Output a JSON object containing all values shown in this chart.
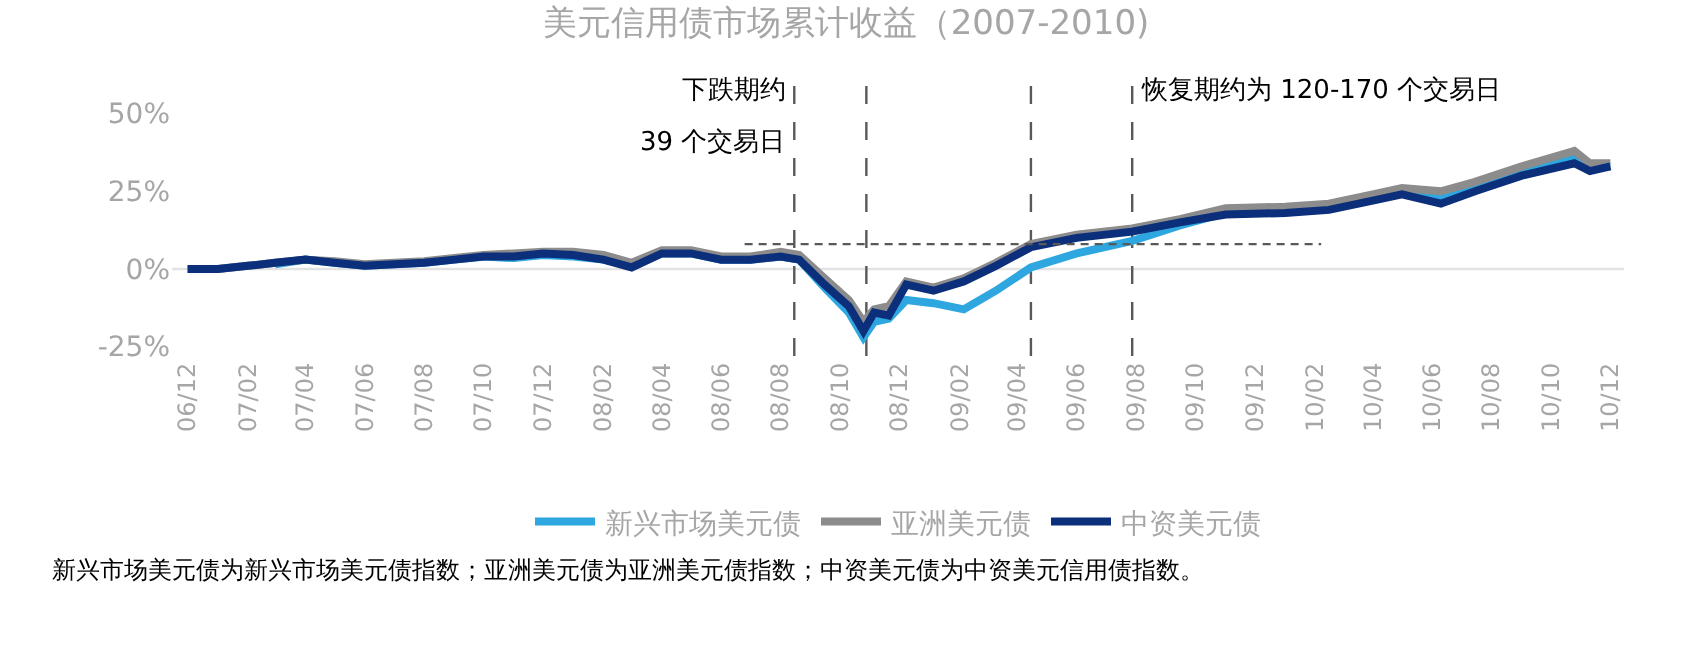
{
  "chart_data": {
    "type": "line",
    "title": "美元信用债市场累计收益（2007-2010)",
    "x": [
      "2006-12-01",
      "2007-01-01",
      "2007-02-01",
      "2007-03-01",
      "2007-04-01",
      "2007-05-01",
      "2007-06-01",
      "2007-07-01",
      "2007-08-01",
      "2007-09-01",
      "2007-10-01",
      "2007-11-01",
      "2007-12-01",
      "2008-01-01",
      "2008-02-01",
      "2008-03-01",
      "2008-04-01",
      "2008-05-01",
      "2008-06-01",
      "2008-07-01",
      "2008-08-01",
      "2008-08-20",
      "2008-09-15",
      "2008-10-10",
      "2008-10-25",
      "2008-11-05",
      "2008-11-20",
      "2008-12-08",
      "2009-01-05",
      "2009-02-05",
      "2009-03-10",
      "2009-04-15",
      "2009-06-01",
      "2009-07-28",
      "2009-09-15",
      "2009-11-01",
      "2010-01-01",
      "2010-02-15",
      "2010-04-01",
      "2010-05-01",
      "2010-06-10",
      "2010-07-15",
      "2010-09-01",
      "2010-10-25",
      "2010-11-10",
      "2010-12-01"
    ],
    "series": [
      {
        "name": "新兴市场美元债",
        "color": "#2ea7e0",
        "values": [
          null,
          null,
          null,
          1.5,
          3,
          2,
          1,
          1.5,
          2,
          3,
          4,
          3.5,
          4.5,
          4,
          3,
          1,
          5,
          5,
          3,
          3,
          4,
          3,
          -6,
          -14,
          -22,
          -17,
          -16,
          -10,
          -11,
          -13,
          -7,
          0.5,
          5,
          9,
          14,
          18,
          19,
          20,
          23,
          25,
          23,
          27,
          31,
          36,
          33,
          33
        ]
      },
      {
        "name": "亚洲美元债",
        "color": "#8c8c8c",
        "values": [
          0,
          0,
          1,
          2,
          3,
          2.5,
          1.5,
          2,
          2.5,
          3.5,
          4.5,
          5,
          5.5,
          5.5,
          4.5,
          2,
          6,
          6,
          4,
          4,
          5.5,
          4.5,
          -3,
          -10,
          -17,
          -13,
          -12,
          -4,
          -6,
          -3,
          2,
          8,
          11,
          13,
          16,
          19.5,
          20,
          21,
          24,
          26,
          25,
          28,
          33,
          38,
          34,
          34
        ]
      },
      {
        "name": "中资美元债",
        "color": "#0b2f7a",
        "values": [
          0,
          0,
          1,
          2,
          3,
          2,
          1,
          1.5,
          2,
          3,
          4,
          4,
          5,
          4.5,
          3,
          0.5,
          5,
          5,
          3,
          3,
          4,
          3,
          -5,
          -12,
          -20,
          -14,
          -15,
          -5,
          -7,
          -4,
          1,
          7,
          10,
          12,
          15,
          17.5,
          18,
          19,
          22,
          24,
          21,
          25,
          30,
          34,
          31.5,
          33
        ]
      },
      {
        "type": "line",
        "color": "#595959",
        "line_style": "dashed",
        "x": [
          "2008-06-25",
          "2010-02-07"
        ],
        "values": [
          8,
          8
        ]
      }
    ],
    "xlim": [
      "2006-11-15",
      "2010-12-15"
    ],
    "xticks": [
      {
        "value": "2006-12-01",
        "label": "06/12"
      },
      {
        "value": "2007-02-01",
        "label": "07/02"
      },
      {
        "value": "2007-04-01",
        "label": "07/04"
      },
      {
        "value": "2007-06-01",
        "label": "07/06"
      },
      {
        "value": "2007-08-01",
        "label": "07/08"
      },
      {
        "value": "2007-10-01",
        "label": "07/10"
      },
      {
        "value": "2007-12-01",
        "label": "07/12"
      },
      {
        "value": "2008-02-01",
        "label": "08/02"
      },
      {
        "value": "2008-04-01",
        "label": "08/04"
      },
      {
        "value": "2008-06-01",
        "label": "08/06"
      },
      {
        "value": "2008-08-01",
        "label": "08/08"
      },
      {
        "value": "2008-10-01",
        "label": "08/10"
      },
      {
        "value": "2008-12-01",
        "label": "08/12"
      },
      {
        "value": "2009-02-01",
        "label": "09/02"
      },
      {
        "value": "2009-04-01",
        "label": "09/04"
      },
      {
        "value": "2009-06-01",
        "label": "09/06"
      },
      {
        "value": "2009-08-01",
        "label": "09/08"
      },
      {
        "value": "2009-10-01",
        "label": "09/10"
      },
      {
        "value": "2009-12-01",
        "label": "09/12"
      },
      {
        "value": "2010-02-01",
        "label": "10/02"
      },
      {
        "value": "2010-04-01",
        "label": "10/04"
      },
      {
        "value": "2010-06-01",
        "label": "10/06"
      },
      {
        "value": "2010-08-01",
        "label": "10/08"
      },
      {
        "value": "2010-10-01",
        "label": "10/10"
      },
      {
        "value": "2010-12-01",
        "label": "10/12"
      }
    ],
    "ylim": [
      -28,
      64
    ],
    "yticks": [
      {
        "value": -25,
        "label": "-25%"
      },
      {
        "value": 0,
        "label": "0%"
      },
      {
        "value": 25,
        "label": "25%"
      },
      {
        "value": 50,
        "label": "50%"
      }
    ],
    "ref_lines": [
      {
        "axis": "y",
        "value": 0,
        "color": "#e3e3e3",
        "line_style": "solid"
      },
      {
        "axis": "x",
        "value": "2008-08-15",
        "color": "#595959",
        "line_style": "dashed"
      },
      {
        "axis": "x",
        "value": "2008-10-28",
        "color": "#595959",
        "line_style": "dashed"
      },
      {
        "axis": "x",
        "value": "2009-04-15",
        "color": "#595959",
        "line_style": "dashed"
      },
      {
        "axis": "x",
        "value": "2009-07-28",
        "color": "#595959",
        "line_style": "dashed"
      }
    ],
    "annotations": [
      "下跌期约",
      "39 个交易日",
      "恢复期约为 120-170 个交易日",
      "新兴市场美元债为新兴市场美元债指数；亚洲美元债为亚洲美元债指数；中资美元债为中资美元信用债指数。"
    ],
    "legend": "bottom",
    "grid": false,
    "marker": "none",
    "line_style": "solid"
  }
}
